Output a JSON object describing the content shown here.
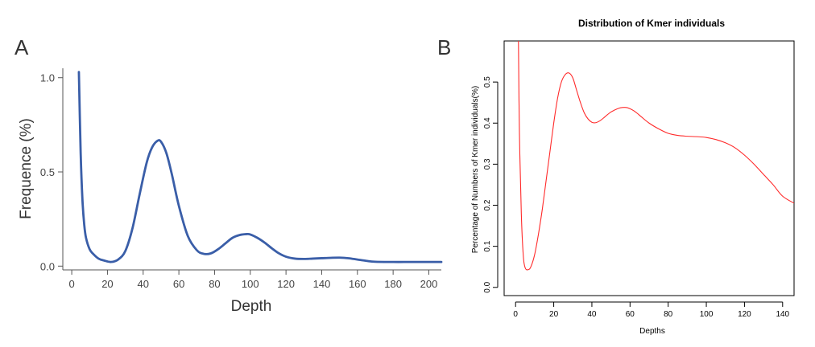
{
  "chart_data": [
    {
      "panel": "A",
      "type": "line",
      "title": "",
      "xlabel": "Depth",
      "ylabel": "Frequence (%)",
      "xlim": [
        -5,
        207
      ],
      "ylim": [
        -0.02,
        1.05
      ],
      "xticks": [
        0,
        20,
        40,
        60,
        80,
        100,
        120,
        140,
        160,
        180,
        200
      ],
      "yticks": [
        0.0,
        0.5,
        1.0
      ],
      "ytick_labels": [
        "0.0",
        "0.5",
        "1.0"
      ],
      "grid": false,
      "line_color": "#3a5ea8",
      "series": [
        {
          "x": [
            4,
            5,
            6,
            7,
            8,
            10,
            12,
            15,
            18,
            22,
            26,
            30,
            34,
            38,
            42,
            45,
            48,
            50,
            53,
            56,
            60,
            65,
            70,
            74,
            78,
            82,
            86,
            90,
            94,
            98,
            100,
            104,
            108,
            112,
            116,
            120,
            125,
            130,
            135,
            140,
            145,
            150,
            155,
            160,
            165,
            170,
            180,
            190,
            200,
            207
          ],
          "y": [
            1.03,
            0.6,
            0.35,
            0.22,
            0.15,
            0.09,
            0.065,
            0.04,
            0.03,
            0.022,
            0.035,
            0.08,
            0.2,
            0.38,
            0.55,
            0.63,
            0.665,
            0.66,
            0.6,
            0.49,
            0.32,
            0.16,
            0.085,
            0.065,
            0.068,
            0.09,
            0.12,
            0.15,
            0.165,
            0.17,
            0.168,
            0.15,
            0.125,
            0.095,
            0.068,
            0.05,
            0.04,
            0.038,
            0.04,
            0.042,
            0.044,
            0.045,
            0.042,
            0.035,
            0.028,
            0.023,
            0.022,
            0.022,
            0.022,
            0.022
          ]
        }
      ]
    },
    {
      "panel": "B",
      "type": "line",
      "title": "Distribution of Kmer individuals",
      "xlabel": "Depths",
      "ylabel": "Percentage of Numbers of Kmer individuals(%)",
      "xlim": [
        -6,
        146
      ],
      "ylim": [
        -0.02,
        0.6
      ],
      "xticks": [
        0,
        20,
        40,
        60,
        80,
        100,
        120,
        140
      ],
      "yticks": [
        0.0,
        0.1,
        0.2,
        0.3,
        0.4,
        0.5
      ],
      "ytick_labels": [
        "0.0",
        "0.1",
        "0.2",
        "0.3",
        "0.4",
        "0.5"
      ],
      "grid": false,
      "line_color": "#ff2a2a",
      "series": [
        {
          "x": [
            1.5,
            2.0,
            3.0,
            4.0,
            5.0,
            6.5,
            8.0,
            10,
            12,
            14,
            16,
            18,
            20,
            22,
            24,
            26,
            28,
            30,
            32,
            34,
            36,
            38,
            40,
            42,
            44,
            46,
            48,
            50,
            52,
            54,
            56,
            58,
            60,
            62,
            64,
            66,
            70,
            75,
            80,
            85,
            90,
            95,
            100,
            105,
            110,
            115,
            120,
            125,
            130,
            135,
            140,
            146
          ],
          "y": [
            0.6,
            0.38,
            0.18,
            0.08,
            0.048,
            0.043,
            0.05,
            0.08,
            0.13,
            0.19,
            0.26,
            0.33,
            0.4,
            0.46,
            0.5,
            0.518,
            0.522,
            0.51,
            0.48,
            0.45,
            0.425,
            0.41,
            0.402,
            0.401,
            0.405,
            0.412,
            0.42,
            0.427,
            0.432,
            0.436,
            0.438,
            0.438,
            0.435,
            0.43,
            0.423,
            0.415,
            0.4,
            0.386,
            0.375,
            0.37,
            0.368,
            0.367,
            0.365,
            0.36,
            0.352,
            0.34,
            0.322,
            0.3,
            0.275,
            0.25,
            0.222,
            0.205
          ]
        }
      ]
    }
  ],
  "panels": {
    "a_letter": "A",
    "b_letter": "B"
  }
}
